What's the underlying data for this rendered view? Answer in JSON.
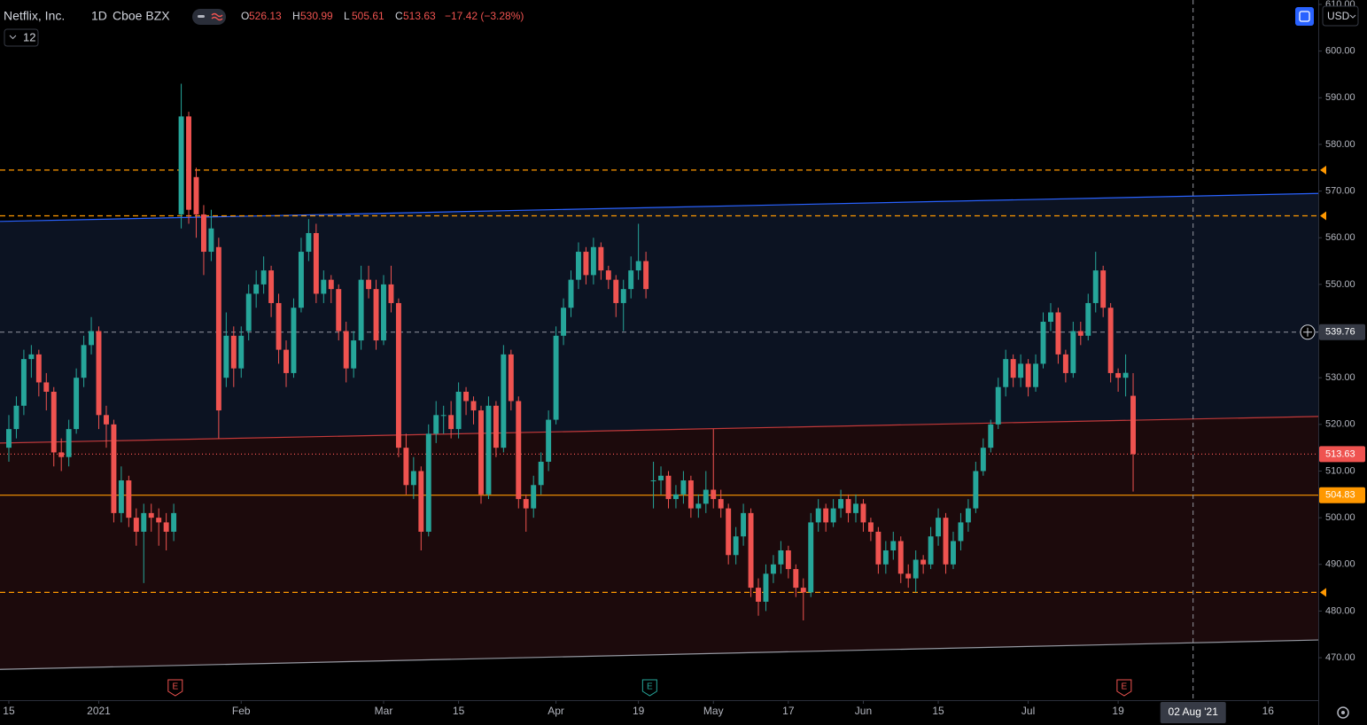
{
  "chart_data": {
    "type": "candlestick",
    "title": "Netflix, Inc.",
    "interval": "1D",
    "exchange": "Cboe BZX",
    "indicator_count": 12,
    "currency": "USD",
    "legend_labels": [
      "O",
      "H",
      "L",
      "C"
    ],
    "change_text": "−17.42 (−3.28%)",
    "up_color": "#26a69a",
    "down_color": "#ef5350",
    "xlim": [
      -1.18,
      174.7
    ],
    "xticks": [
      {
        "value": 0,
        "label": "15"
      },
      {
        "value": 12,
        "label": "2021"
      },
      {
        "value": 31,
        "label": "Feb"
      },
      {
        "value": 50,
        "label": "Mar"
      },
      {
        "value": 60,
        "label": "15"
      },
      {
        "value": 73,
        "label": "Apr"
      },
      {
        "value": 84,
        "label": "19"
      },
      {
        "value": 94,
        "label": "May"
      },
      {
        "value": 104,
        "label": "17"
      },
      {
        "value": 114,
        "label": "Jun"
      },
      {
        "value": 124,
        "label": "15"
      },
      {
        "value": 136,
        "label": "Jul"
      },
      {
        "value": 148,
        "label": "19"
      },
      {
        "value": 168,
        "label": "16"
      }
    ],
    "ylim": [
      460.9,
      610.95
    ],
    "yticks": [
      {
        "value": 470,
        "label": "470.00"
      },
      {
        "value": 480,
        "label": "480.00"
      },
      {
        "value": 490,
        "label": "490.00"
      },
      {
        "value": 500,
        "label": "500.00"
      },
      {
        "value": 510,
        "label": "510.00"
      },
      {
        "value": 520,
        "label": "520.00"
      },
      {
        "value": 530,
        "label": "530.00"
      },
      {
        "value": 540,
        "label": "540.00"
      },
      {
        "value": 550,
        "label": "550.00"
      },
      {
        "value": 560,
        "label": "560.00"
      },
      {
        "value": 570,
        "label": "570.00"
      },
      {
        "value": 580,
        "label": "580.00"
      },
      {
        "value": 590,
        "label": "590.00"
      },
      {
        "value": 600,
        "label": "600.00"
      },
      {
        "value": 610,
        "label": "610.00"
      }
    ],
    "x": [
      0,
      1,
      2,
      3,
      4,
      5,
      6,
      7,
      8,
      9,
      10,
      11,
      12,
      13,
      14,
      15,
      16,
      17,
      18,
      19,
      20,
      21,
      22,
      23,
      24,
      25,
      26,
      27,
      28,
      29,
      30,
      31,
      32,
      33,
      34,
      35,
      36,
      37,
      38,
      39,
      40,
      41,
      42,
      43,
      44,
      45,
      46,
      47,
      48,
      49,
      50,
      51,
      52,
      53,
      54,
      55,
      56,
      57,
      58,
      59,
      60,
      61,
      62,
      63,
      64,
      65,
      66,
      67,
      68,
      69,
      70,
      71,
      72,
      73,
      74,
      75,
      76,
      77,
      78,
      79,
      80,
      81,
      82,
      83,
      84,
      85,
      86,
      87,
      88,
      89,
      90,
      91,
      92,
      93,
      94,
      95,
      96,
      97,
      98,
      99,
      100,
      101,
      102,
      103,
      104,
      105,
      106,
      107,
      108,
      109,
      110,
      111,
      112,
      113,
      114,
      115,
      116,
      117,
      118,
      119,
      120,
      121,
      122,
      123,
      124,
      125,
      126,
      127,
      128,
      129,
      130,
      131,
      132,
      133,
      134,
      135,
      136,
      137,
      138,
      139,
      140,
      141,
      142,
      143,
      144,
      145,
      146,
      147,
      148,
      149,
      150
    ],
    "candles": [
      [
        515,
        522,
        512,
        519
      ],
      [
        519,
        526,
        517,
        524
      ],
      [
        524,
        536,
        522,
        534
      ],
      [
        534,
        537,
        530,
        535
      ],
      [
        535,
        536,
        526,
        529
      ],
      [
        529,
        531,
        523,
        527
      ],
      [
        527,
        528,
        511,
        514
      ],
      [
        514,
        517,
        510,
        513
      ],
      [
        513,
        521,
        511,
        519
      ],
      [
        519,
        532,
        518,
        530
      ],
      [
        530,
        539,
        528,
        537
      ],
      [
        537,
        543,
        535,
        540
      ],
      [
        540,
        541,
        519,
        522
      ],
      [
        522,
        524,
        515,
        520
      ],
      [
        520,
        521,
        499,
        501
      ],
      [
        501,
        511,
        499,
        508
      ],
      [
        508,
        509,
        498,
        500
      ],
      [
        500,
        502,
        494,
        497
      ],
      [
        497,
        503,
        486,
        501
      ],
      [
        501,
        503,
        497,
        500
      ],
      [
        500,
        502,
        494,
        499
      ],
      [
        499,
        501,
        493,
        497
      ],
      [
        497,
        503,
        495,
        501
      ],
      [
        565,
        593,
        562,
        586
      ],
      [
        586,
        587,
        563,
        566
      ],
      [
        573,
        575,
        560,
        565
      ],
      [
        565,
        567,
        552,
        557
      ],
      [
        557,
        566,
        555,
        562
      ],
      [
        558,
        560,
        517,
        523
      ],
      [
        530,
        544,
        528,
        539
      ],
      [
        539,
        541,
        528,
        532
      ],
      [
        532,
        541,
        530,
        539
      ],
      [
        540,
        550,
        538,
        548
      ],
      [
        548,
        553,
        545,
        550
      ],
      [
        550,
        556,
        548,
        553
      ],
      [
        553,
        554,
        543,
        546
      ],
      [
        546,
        548,
        533,
        536
      ],
      [
        536,
        538,
        528,
        531
      ],
      [
        531,
        547,
        530,
        545
      ],
      [
        545,
        560,
        544,
        557
      ],
      [
        557,
        564,
        555,
        561
      ],
      [
        561,
        563,
        546,
        548
      ],
      [
        548,
        553,
        546,
        551
      ],
      [
        551,
        552,
        546,
        549
      ],
      [
        549,
        550,
        538,
        540
      ],
      [
        540,
        542,
        529,
        532
      ],
      [
        532,
        540,
        530,
        538
      ],
      [
        538,
        554,
        536,
        551
      ],
      [
        551,
        554,
        547,
        549
      ],
      [
        549,
        551,
        536,
        538
      ],
      [
        538,
        552,
        537,
        550
      ],
      [
        550,
        554,
        544,
        546
      ],
      [
        546,
        547,
        513,
        515
      ],
      [
        515,
        518,
        505,
        507
      ],
      [
        507,
        513,
        504,
        510
      ],
      [
        510,
        511,
        493,
        497
      ],
      [
        497,
        520,
        496,
        518
      ],
      [
        518,
        525,
        516,
        522
      ],
      [
        522,
        524,
        518,
        522
      ],
      [
        522,
        525,
        517,
        519
      ],
      [
        519,
        529,
        517,
        527
      ],
      [
        527,
        528,
        522,
        525
      ],
      [
        525,
        526,
        520,
        523
      ],
      [
        523,
        524,
        503,
        505
      ],
      [
        505,
        526,
        504,
        524
      ],
      [
        524,
        525,
        513,
        515
      ],
      [
        515,
        537,
        514,
        535
      ],
      [
        535,
        536,
        523,
        525
      ],
      [
        525,
        526,
        502,
        504
      ],
      [
        504,
        505,
        497,
        502
      ],
      [
        502,
        509,
        500,
        507
      ],
      [
        507,
        514,
        505,
        512
      ],
      [
        512,
        523,
        510,
        521
      ],
      [
        521,
        541,
        520,
        539
      ],
      [
        539,
        547,
        537,
        545
      ],
      [
        545,
        553,
        543,
        551
      ],
      [
        551,
        559,
        549,
        557
      ],
      [
        557,
        558,
        550,
        552
      ],
      [
        552,
        560,
        550,
        558
      ],
      [
        558,
        559,
        551,
        553
      ],
      [
        553,
        554,
        549,
        551
      ],
      [
        551,
        552,
        543,
        546
      ],
      [
        546,
        551,
        540,
        549
      ],
      [
        549,
        556,
        547,
        553
      ],
      [
        553,
        563,
        551,
        555
      ],
      [
        555,
        557,
        547,
        549
      ],
      [
        508,
        512,
        502,
        508
      ],
      [
        508,
        511,
        505,
        509
      ],
      [
        509,
        510,
        502,
        504
      ],
      [
        504,
        507,
        502,
        505
      ],
      [
        505,
        510,
        503,
        508
      ],
      [
        508,
        509,
        500,
        502
      ],
      [
        502,
        505,
        500,
        503
      ],
      [
        503,
        510,
        501,
        506
      ],
      [
        506,
        519,
        502,
        504
      ],
      [
        504,
        506,
        500,
        502
      ],
      [
        502,
        503,
        490,
        492
      ],
      [
        492,
        498,
        490,
        496
      ],
      [
        496,
        503,
        494,
        501
      ],
      [
        501,
        502,
        483,
        485
      ],
      [
        485,
        487,
        479,
        482
      ],
      [
        482,
        490,
        480,
        488
      ],
      [
        488,
        492,
        486,
        490
      ],
      [
        490,
        495,
        488,
        493
      ],
      [
        493,
        494,
        487,
        489
      ],
      [
        489,
        490,
        483,
        485
      ],
      [
        485,
        487,
        478,
        484
      ],
      [
        484,
        501,
        483,
        499
      ],
      [
        499,
        504,
        497,
        502
      ],
      [
        502,
        503,
        497,
        499
      ],
      [
        499,
        504,
        498,
        502
      ],
      [
        502,
        506,
        500,
        504
      ],
      [
        504,
        505,
        499,
        501
      ],
      [
        501,
        505,
        499,
        503
      ],
      [
        503,
        504,
        497,
        499
      ],
      [
        499,
        500,
        495,
        497
      ],
      [
        497,
        498,
        488,
        490
      ],
      [
        490,
        495,
        488,
        493
      ],
      [
        493,
        497,
        491,
        495
      ],
      [
        495,
        496,
        486,
        488
      ],
      [
        488,
        490,
        485,
        487
      ],
      [
        487,
        493,
        484,
        491
      ],
      [
        491,
        492,
        488,
        490
      ],
      [
        490,
        498,
        489,
        496
      ],
      [
        496,
        502,
        494,
        500
      ],
      [
        500,
        501,
        488,
        490
      ],
      [
        490,
        497,
        489,
        495
      ],
      [
        495,
        501,
        493,
        499
      ],
      [
        499,
        504,
        497,
        502
      ],
      [
        502,
        512,
        501,
        510
      ],
      [
        510,
        517,
        509,
        515
      ],
      [
        515,
        521,
        514,
        520
      ],
      [
        520,
        530,
        519,
        528
      ],
      [
        528,
        536,
        526,
        534
      ],
      [
        534,
        535,
        528,
        530
      ],
      [
        530,
        535,
        528,
        533
      ],
      [
        533,
        534,
        526,
        528
      ],
      [
        528,
        535,
        527,
        533
      ],
      [
        533,
        544,
        532,
        542
      ],
      [
        542,
        546,
        540,
        544
      ],
      [
        544,
        545,
        533,
        535
      ],
      [
        535,
        536,
        529,
        531
      ],
      [
        531,
        542,
        530,
        540
      ],
      [
        540,
        542,
        537,
        539
      ],
      [
        539,
        548,
        538,
        546
      ],
      [
        546,
        557,
        544,
        553
      ],
      [
        553,
        554,
        543,
        545
      ],
      [
        545,
        546,
        529,
        531
      ],
      [
        531,
        532,
        527,
        530
      ],
      [
        530,
        535,
        526,
        531.05
      ],
      [
        526.13,
        530.99,
        505.61,
        513.63
      ]
    ],
    "levels": [
      {
        "value": 574.5,
        "color": "#ff9800",
        "style": "dashed",
        "arrow": true
      },
      {
        "value": 564.7,
        "color": "#ff9800",
        "style": "dashed",
        "arrow": true
      },
      {
        "value": 484,
        "color": "#ff9800",
        "style": "dashed",
        "arrow": true
      },
      {
        "value": 513.63,
        "color": "#ef5350",
        "style": "dotted",
        "tag": true
      },
      {
        "value": 504.83,
        "color": "#ff9800",
        "style": "solid",
        "tag": true
      }
    ],
    "lines": [
      {
        "color": "#2962ff",
        "x": [
          -1.18,
          174.7
        ],
        "y": [
          563.5,
          569.5
        ]
      },
      {
        "color": "#c2393a",
        "x": [
          -1.18,
          174.7
        ],
        "y": [
          516,
          521.7
        ]
      },
      {
        "color": "#9598a1",
        "x": [
          -1.18,
          174.7
        ],
        "y": [
          467.5,
          473.8
        ]
      }
    ],
    "earnings": [
      {
        "x": 22.2,
        "label": "E",
        "color": "#ef5350"
      },
      {
        "x": 85.5,
        "label": "E",
        "color": "#26a69a"
      },
      {
        "x": 148.8,
        "label": "E",
        "color": "#ef5350"
      }
    ],
    "crosshair": {
      "x": 158,
      "y": 539.76,
      "x_label": "02 Aug '21"
    }
  }
}
